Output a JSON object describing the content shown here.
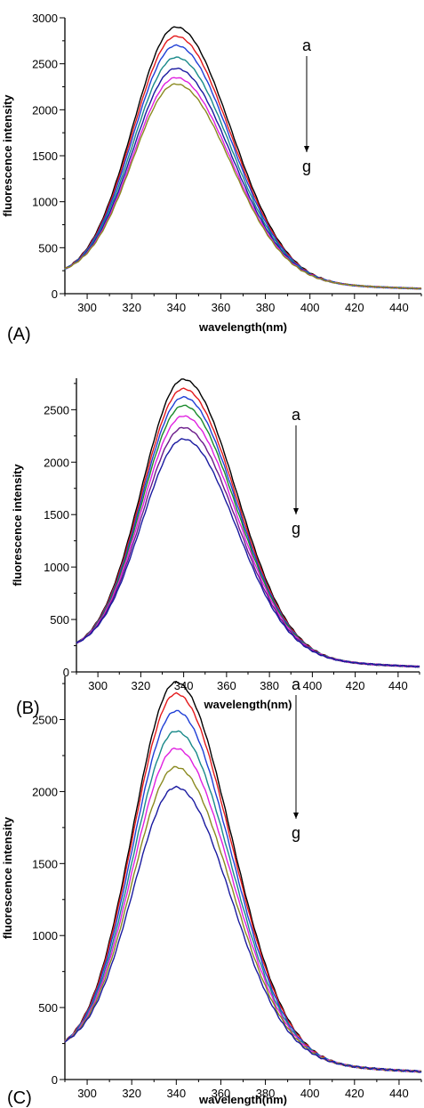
{
  "chart_data": [
    {
      "type": "line",
      "panel_label": "(A)",
      "xlabel": "wavelength(nm)",
      "ylabel": "fluorescence intensity",
      "xlim": [
        290,
        450
      ],
      "ylim": [
        0,
        3000
      ],
      "x_ticks": [
        "300",
        "320",
        "340",
        "360",
        "380",
        "400",
        "420",
        "440"
      ],
      "y_ticks": [
        "0",
        "500",
        "1000",
        "1500",
        "2000",
        "2500",
        "3000"
      ],
      "annotation": {
        "start": "a",
        "end": "g"
      },
      "peak_wavelength": 340,
      "grid": false,
      "legend": "none",
      "series": [
        {
          "color": "#000000",
          "peak": 2900,
          "y_at_290": 270,
          "y_at_450": 55
        },
        {
          "color": "#e41a1c",
          "peak": 2800,
          "y_at_290": 270,
          "y_at_450": 55
        },
        {
          "color": "#1f3fd6",
          "peak": 2700,
          "y_at_290": 270,
          "y_at_450": 55
        },
        {
          "color": "#1a8a8a",
          "peak": 2570,
          "y_at_290": 270,
          "y_at_450": 55
        },
        {
          "color": "#1a1aa0",
          "peak": 2450,
          "y_at_290": 270,
          "y_at_450": 55
        },
        {
          "color": "#e020e0",
          "peak": 2350,
          "y_at_290": 270,
          "y_at_450": 55
        },
        {
          "color": "#8a8a20",
          "peak": 2280,
          "y_at_290": 270,
          "y_at_450": 55
        }
      ]
    },
    {
      "type": "line",
      "panel_label": "(B)",
      "xlabel": "wavelength(nm)",
      "ylabel": "fluorescence intensity",
      "xlim": [
        290,
        450
      ],
      "ylim": [
        0,
        2800
      ],
      "x_ticks": [
        "300",
        "320",
        "340",
        "360",
        "380",
        "400",
        "420",
        "440"
      ],
      "y_ticks": [
        "0",
        "500",
        "1000",
        "1500",
        "2000",
        "2500"
      ],
      "annotation": {
        "start": "a",
        "end": "g"
      },
      "peak_wavelength": 340,
      "grid": false,
      "legend": "none",
      "series": [
        {
          "color": "#000000",
          "peak": 2790,
          "y_at_290": 275,
          "y_at_450": 50
        },
        {
          "color": "#e41a1c",
          "peak": 2700,
          "y_at_290": 275,
          "y_at_450": 50
        },
        {
          "color": "#1f3fd6",
          "peak": 2620,
          "y_at_290": 275,
          "y_at_450": 50
        },
        {
          "color": "#1a8a2a",
          "peak": 2540,
          "y_at_290": 275,
          "y_at_450": 50
        },
        {
          "color": "#e020e0",
          "peak": 2440,
          "y_at_290": 275,
          "y_at_450": 50
        },
        {
          "color": "#6a1a8a",
          "peak": 2330,
          "y_at_290": 275,
          "y_at_450": 50
        },
        {
          "color": "#1a1aa0",
          "peak": 2220,
          "y_at_290": 275,
          "y_at_450": 50
        }
      ]
    },
    {
      "type": "line",
      "panel_label": "(C)",
      "xlabel": "wavelength(nm)",
      "ylabel": "fluorescence intensity",
      "xlim": [
        290,
        450
      ],
      "ylim": [
        0,
        2800
      ],
      "x_ticks": [
        "300",
        "320",
        "340",
        "360",
        "380",
        "400",
        "420",
        "440"
      ],
      "y_ticks": [
        "0",
        "500",
        "1000",
        "1500",
        "2000",
        "2500"
      ],
      "annotation": {
        "start": "a",
        "end": "g"
      },
      "peak_wavelength": 340,
      "grid": false,
      "legend": "none",
      "series": [
        {
          "color": "#000000",
          "peak": 2760,
          "y_at_290": 265,
          "y_at_450": 55
        },
        {
          "color": "#e41a1c",
          "peak": 2680,
          "y_at_290": 265,
          "y_at_450": 55
        },
        {
          "color": "#1f3fd6",
          "peak": 2560,
          "y_at_290": 265,
          "y_at_450": 55
        },
        {
          "color": "#1a8a8a",
          "peak": 2420,
          "y_at_290": 265,
          "y_at_450": 55
        },
        {
          "color": "#e020e0",
          "peak": 2300,
          "y_at_290": 265,
          "y_at_450": 55
        },
        {
          "color": "#8a8a20",
          "peak": 2170,
          "y_at_290": 265,
          "y_at_450": 55
        },
        {
          "color": "#1a1aa0",
          "peak": 2030,
          "y_at_290": 265,
          "y_at_450": 55
        }
      ]
    }
  ]
}
